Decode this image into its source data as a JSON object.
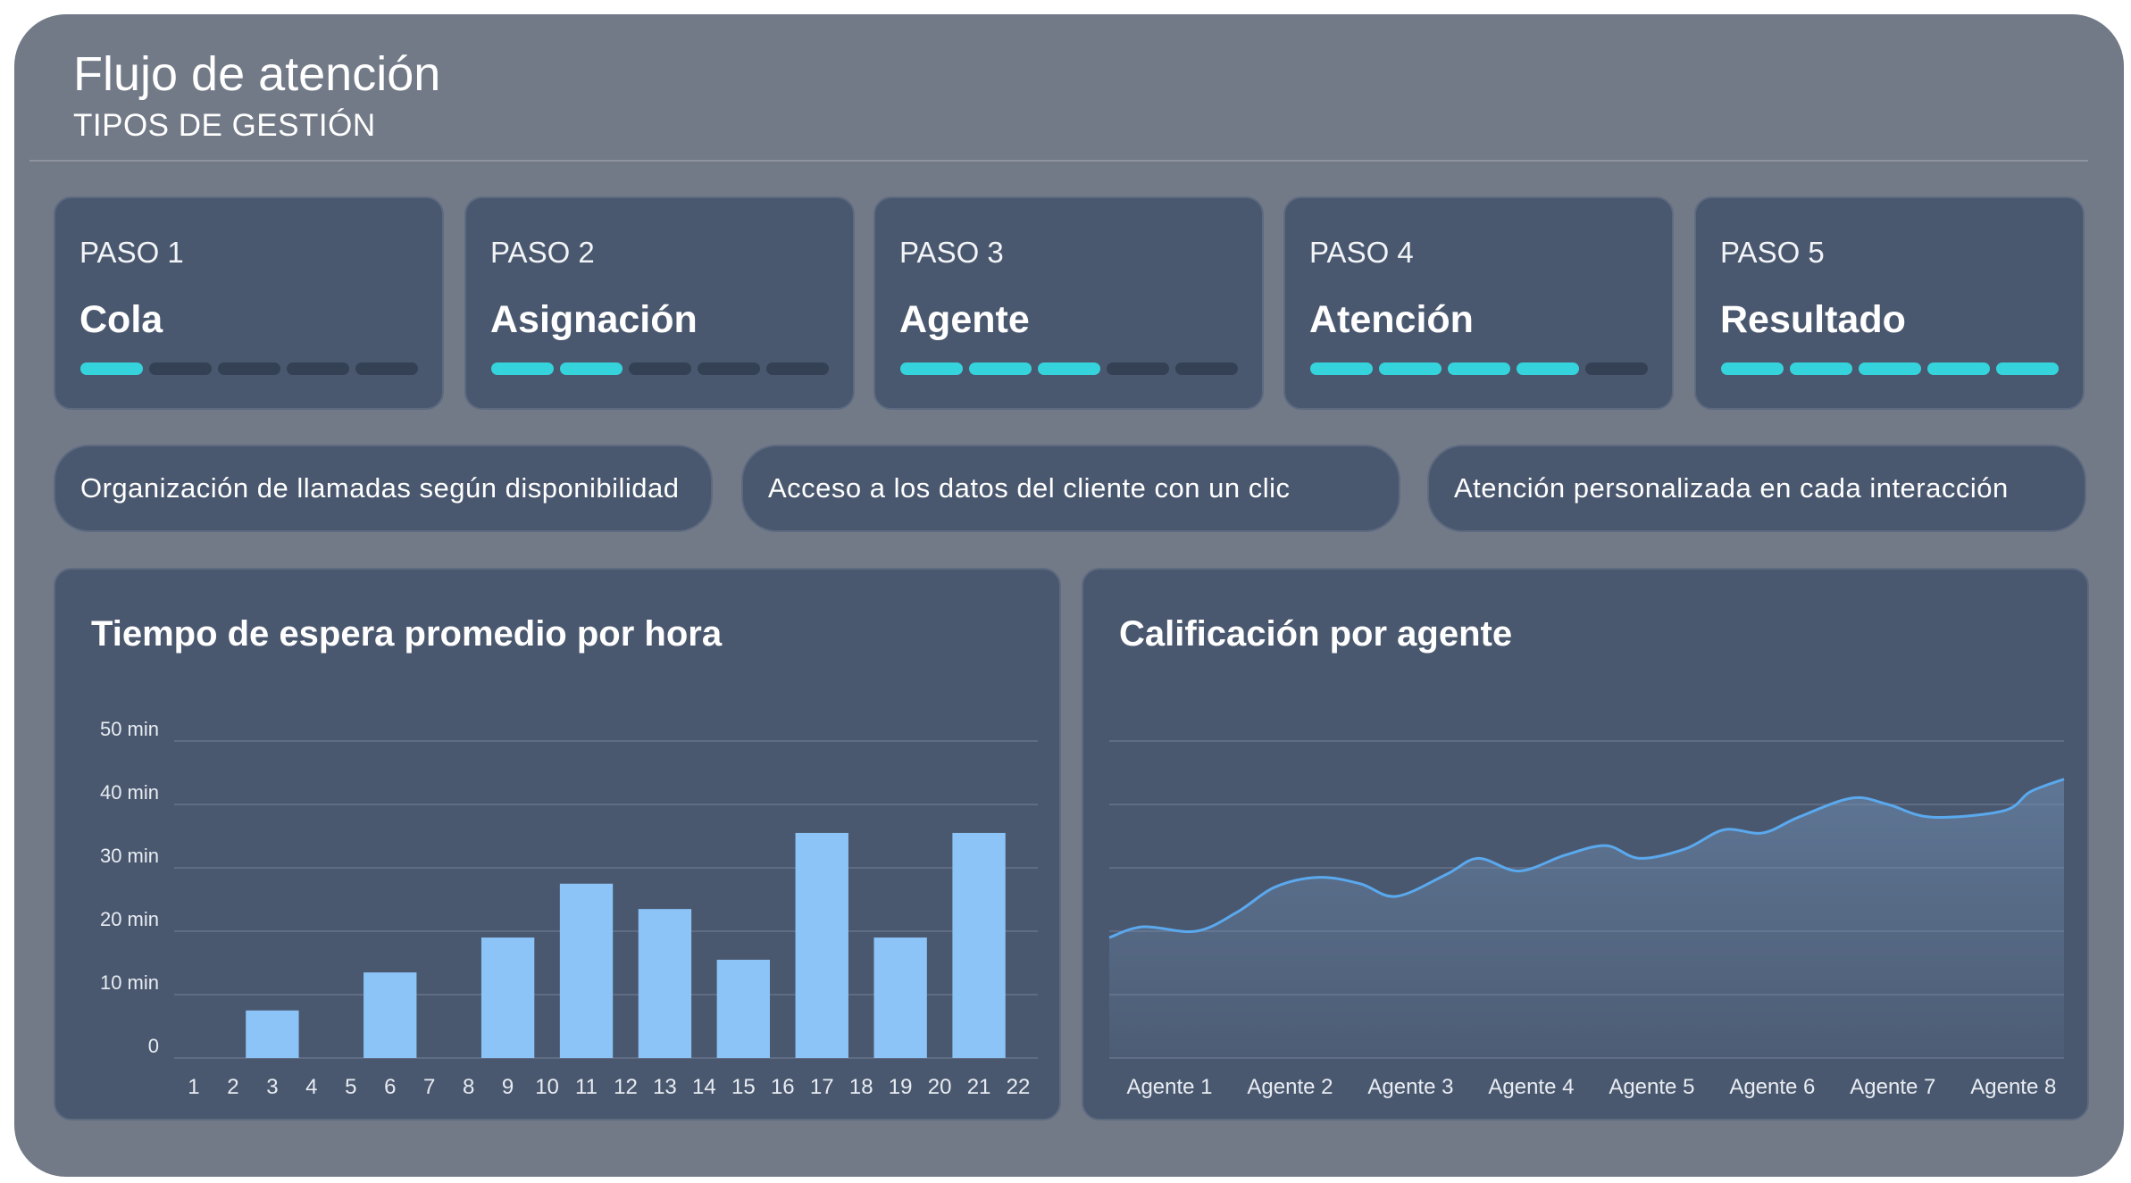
{
  "header": {
    "title": "Flujo de atención",
    "subtitle": "TIPOS DE GESTIÓN"
  },
  "steps": [
    {
      "label": "PASO 1",
      "name": "Cola",
      "progress": 1,
      "total": 5
    },
    {
      "label": "PASO 2",
      "name": "Asignación",
      "progress": 2,
      "total": 5
    },
    {
      "label": "PASO 3",
      "name": "Agente",
      "progress": 3,
      "total": 5
    },
    {
      "label": "PASO 4",
      "name": "Atención",
      "progress": 4,
      "total": 5
    },
    {
      "label": "PASO 5",
      "name": "Resultado",
      "progress": 5,
      "total": 5
    }
  ],
  "features": [
    "Organización de llamadas según disponibilidad",
    "Acceso a los datos del cliente con un clic",
    "Atención personalizada en cada interacción"
  ],
  "colors": {
    "accent": "#35d3dc",
    "bar": "#8cc4f8",
    "line": "#5aa9ee",
    "card": "#4a586f"
  },
  "chart_data": [
    {
      "type": "bar",
      "title": "Tiempo de espera promedio por hora",
      "categories": [
        "1",
        "2",
        "3",
        "4",
        "5",
        "6",
        "7",
        "8",
        "9",
        "10",
        "11",
        "12",
        "13",
        "14",
        "15",
        "16",
        "17",
        "18",
        "19",
        "20",
        "21",
        "22"
      ],
      "values": [
        null,
        null,
        7.5,
        null,
        null,
        13.5,
        null,
        null,
        19,
        null,
        27.5,
        null,
        23.5,
        null,
        15.5,
        null,
        35.5,
        null,
        19,
        null,
        35.5,
        null
      ],
      "ytick_labels": [
        "0",
        "10 min",
        "20 min",
        "30 min",
        "40 min",
        "50 min"
      ],
      "ylim": [
        0,
        50
      ],
      "grid": true
    },
    {
      "type": "area",
      "title": "Calificación por agente",
      "categories": [
        "Agente 1",
        "Agente 2",
        "Agente 3",
        "Agente 4",
        "Agente 5",
        "Agente 6",
        "Agente 7",
        "Agente 8"
      ],
      "x": [
        0,
        0.28,
        0.72,
        1.06,
        1.38,
        1.74,
        2.08,
        2.38,
        2.8,
        3.06,
        3.4,
        3.78,
        4.12,
        4.4,
        4.78,
        5.1,
        5.42,
        5.72,
        6.16,
        6.46,
        6.82,
        7.42,
        7.64,
        7.92
      ],
      "values": [
        19,
        20.7,
        20,
        23,
        27,
        28.5,
        27.5,
        25.5,
        29,
        31.5,
        29.5,
        32,
        33.5,
        31.5,
        33,
        36,
        35.5,
        38,
        41,
        40,
        38,
        39,
        42,
        44
      ],
      "ylim": [
        0,
        50
      ],
      "grid": true
    }
  ]
}
